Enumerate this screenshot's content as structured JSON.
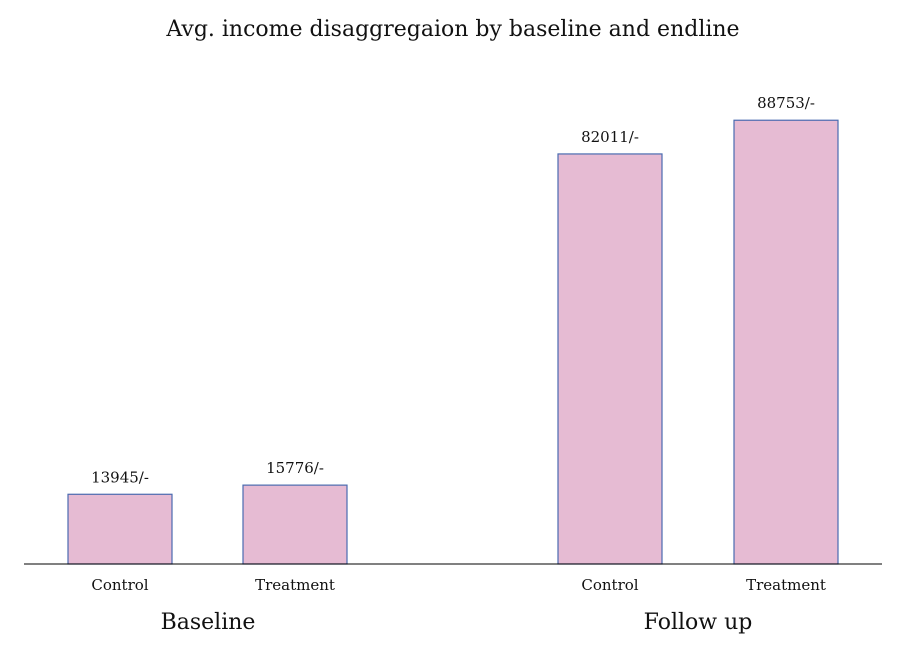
{
  "chart_data": {
    "type": "bar",
    "title": "Avg. income disaggregaion by baseline and endline",
    "groups": [
      {
        "name": "Baseline",
        "bars": [
          {
            "category": "Control",
            "value": 13945,
            "label": "13945/-"
          },
          {
            "category": "Treatment",
            "value": 15776,
            "label": "15776/-"
          }
        ]
      },
      {
        "name": "Follow up",
        "bars": [
          {
            "category": "Control",
            "value": 82011,
            "label": "82011/-"
          },
          {
            "category": "Treatment",
            "value": 88753,
            "label": "88753/-"
          }
        ]
      }
    ],
    "ylim": [
      0,
      100000
    ],
    "grid": false,
    "legend": "none",
    "bar_fill_color": "#E6BBD3",
    "bar_edge_color": "#4A6BB0"
  }
}
